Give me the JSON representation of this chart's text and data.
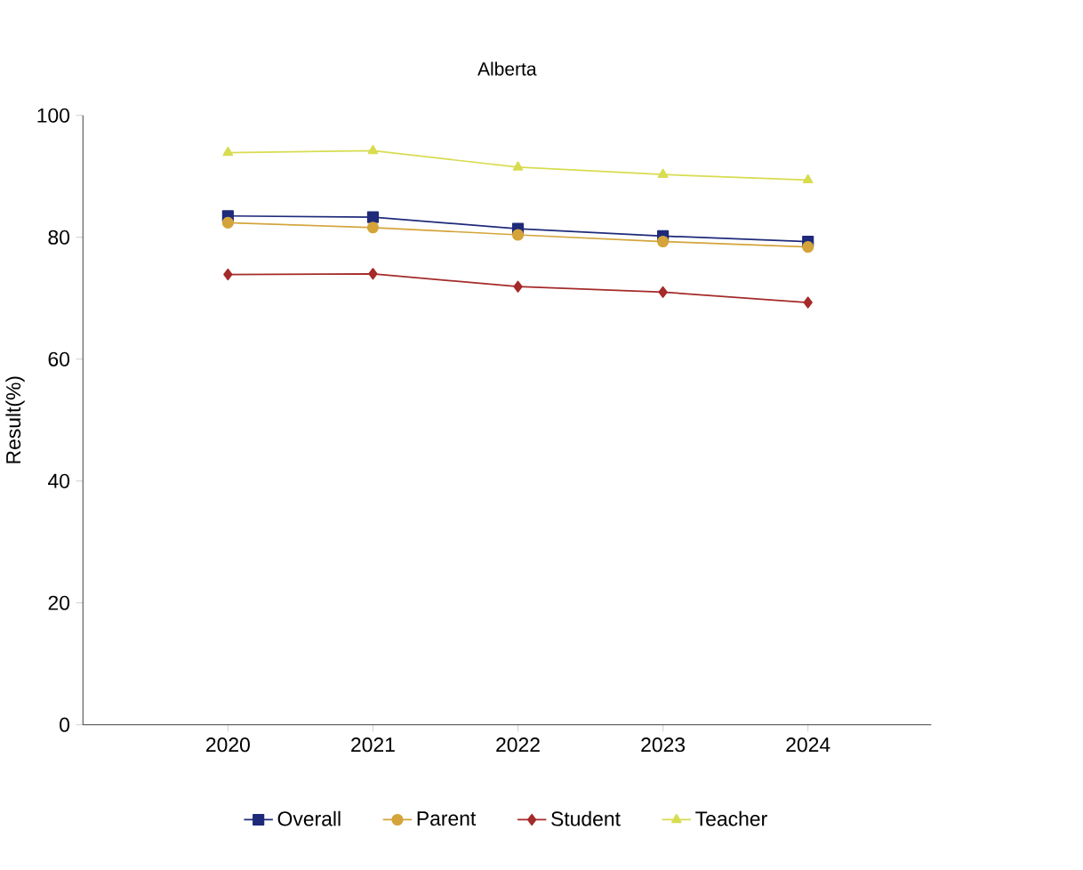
{
  "chart_data": {
    "type": "line",
    "title": "Alberta",
    "ylabel": "Result(%)",
    "categories": [
      "2020",
      "2021",
      "2022",
      "2023",
      "2024"
    ],
    "ylim": [
      0,
      100
    ],
    "yticks": [
      0,
      20,
      40,
      60,
      80,
      100
    ],
    "grid": false,
    "legend": "bottom",
    "series": [
      {
        "name": "Overall",
        "color": "#1f2a7a",
        "marker": "square",
        "values": [
          83.5,
          83.3,
          81.4,
          80.2,
          79.3
        ]
      },
      {
        "name": "Parent",
        "color": "#d4a43a",
        "marker": "circle",
        "values": [
          82.4,
          81.6,
          80.4,
          79.3,
          78.4
        ]
      },
      {
        "name": "Student",
        "color": "#a52a2a",
        "marker": "diamond",
        "values": [
          73.9,
          74.0,
          71.9,
          71.0,
          69.3
        ]
      },
      {
        "name": "Teacher",
        "color": "#d8dc50",
        "marker": "triangle",
        "values": [
          93.9,
          94.2,
          91.5,
          90.3,
          89.4
        ]
      }
    ]
  }
}
